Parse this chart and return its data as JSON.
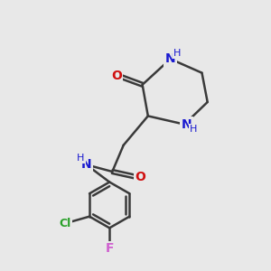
{
  "background_color": "#e8e8e8",
  "bond_color": "#3a3a3a",
  "bond_width": 1.8,
  "atom_colors": {
    "C": "#3a3a3a",
    "N": "#1a1ad0",
    "O": "#d01010",
    "Cl": "#28a028",
    "F": "#d060d0",
    "H": "#1a1ad0"
  },
  "font_size_atom": 10,
  "font_size_h": 8,
  "font_size_cl": 9
}
